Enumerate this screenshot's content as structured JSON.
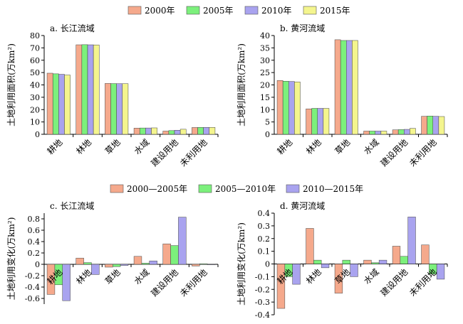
{
  "legend_top": [
    "2000年",
    "2005年",
    "2010年",
    "2015年"
  ],
  "legend_bottom": [
    "2000—2005年",
    "2005—2010年",
    "2010—2015年"
  ],
  "colors_top": [
    "#f5a98c",
    "#7cf07c",
    "#a9a3ef",
    "#f4f58e"
  ],
  "colors_bottom": [
    "#f5a98c",
    "#7cf07c",
    "#a9a3ef"
  ],
  "chart_data": [
    {
      "type": "bar",
      "title": "a. 长江流域",
      "ylabel": "土地利用面积(万km²)",
      "categories": [
        "耕地",
        "林地",
        "草地",
        "水域",
        "建设用地",
        "未利用地"
      ],
      "ylim": [
        0,
        80
      ],
      "yticks": [
        0,
        10,
        20,
        30,
        40,
        50,
        60,
        70,
        80
      ],
      "series": [
        {
          "name": "2000年",
          "values": [
            49.5,
            72.5,
            41.2,
            5.0,
            2.6,
            5.5
          ]
        },
        {
          "name": "2005年",
          "values": [
            49.0,
            72.6,
            41.1,
            5.1,
            3.0,
            5.6
          ]
        },
        {
          "name": "2010年",
          "values": [
            48.6,
            72.5,
            41.0,
            5.1,
            3.3,
            5.6
          ]
        },
        {
          "name": "2015年",
          "values": [
            48.0,
            72.4,
            41.0,
            5.2,
            4.1,
            5.6
          ]
        }
      ]
    },
    {
      "type": "bar",
      "title": "b. 黄河流域",
      "ylabel": "土地利用面积(万km²)",
      "categories": [
        "耕地",
        "林地",
        "草地",
        "水域",
        "建设用地",
        "未利用地"
      ],
      "ylim": [
        0,
        40
      ],
      "yticks": [
        0,
        5,
        10,
        15,
        20,
        25,
        30,
        35,
        40
      ],
      "series": [
        {
          "name": "2000年",
          "values": [
            21.8,
            10.3,
            38.3,
            1.3,
            1.8,
            7.3
          ]
        },
        {
          "name": "2005年",
          "values": [
            21.5,
            10.5,
            38.0,
            1.3,
            1.9,
            7.4
          ]
        },
        {
          "name": "2010年",
          "values": [
            21.4,
            10.5,
            38.0,
            1.3,
            2.0,
            7.3
          ]
        },
        {
          "name": "2015年",
          "values": [
            21.2,
            10.5,
            38.0,
            1.3,
            2.4,
            7.2
          ]
        }
      ]
    },
    {
      "type": "bar",
      "title": "c. 长江流域",
      "ylabel": "土地利用变化(万km²)",
      "categories": [
        "耕地",
        "林地",
        "草地",
        "水域",
        "建设用地",
        "未利用地"
      ],
      "ylim": [
        -0.7,
        0.9
      ],
      "yticks": [
        -0.6,
        -0.4,
        -0.2,
        0,
        0.2,
        0.4,
        0.6,
        0.8
      ],
      "series": [
        {
          "name": "2000—2005年",
          "values": [
            -0.53,
            0.11,
            -0.05,
            0.14,
            0.36,
            -0.03
          ]
        },
        {
          "name": "2005—2010年",
          "values": [
            -0.36,
            0.03,
            -0.04,
            0.02,
            0.33,
            0.01
          ]
        },
        {
          "name": "2010—2015年",
          "values": [
            -0.64,
            -0.18,
            -0.02,
            0.06,
            0.83,
            0.0
          ]
        }
      ]
    },
    {
      "type": "bar",
      "title": "d. 黄河流域",
      "ylabel": "土地利用变化(万km²)",
      "categories": [
        "耕地",
        "林地",
        "草地",
        "水域",
        "建设用地",
        "未利用地"
      ],
      "ylim": [
        -0.4,
        0.4
      ],
      "yticks": [
        -0.4,
        -0.3,
        -0.2,
        -0.1,
        0,
        0.1,
        0.2,
        0.3,
        0.4
      ],
      "series": [
        {
          "name": "2000—2005年",
          "values": [
            -0.35,
            0.28,
            -0.23,
            0.03,
            0.14,
            0.15
          ]
        },
        {
          "name": "2005—2010年",
          "values": [
            -0.1,
            0.03,
            0.03,
            0.01,
            0.06,
            -0.08
          ]
        },
        {
          "name": "2010—2015年",
          "values": [
            -0.16,
            -0.03,
            -0.1,
            0.03,
            0.37,
            -0.12
          ]
        }
      ]
    }
  ]
}
